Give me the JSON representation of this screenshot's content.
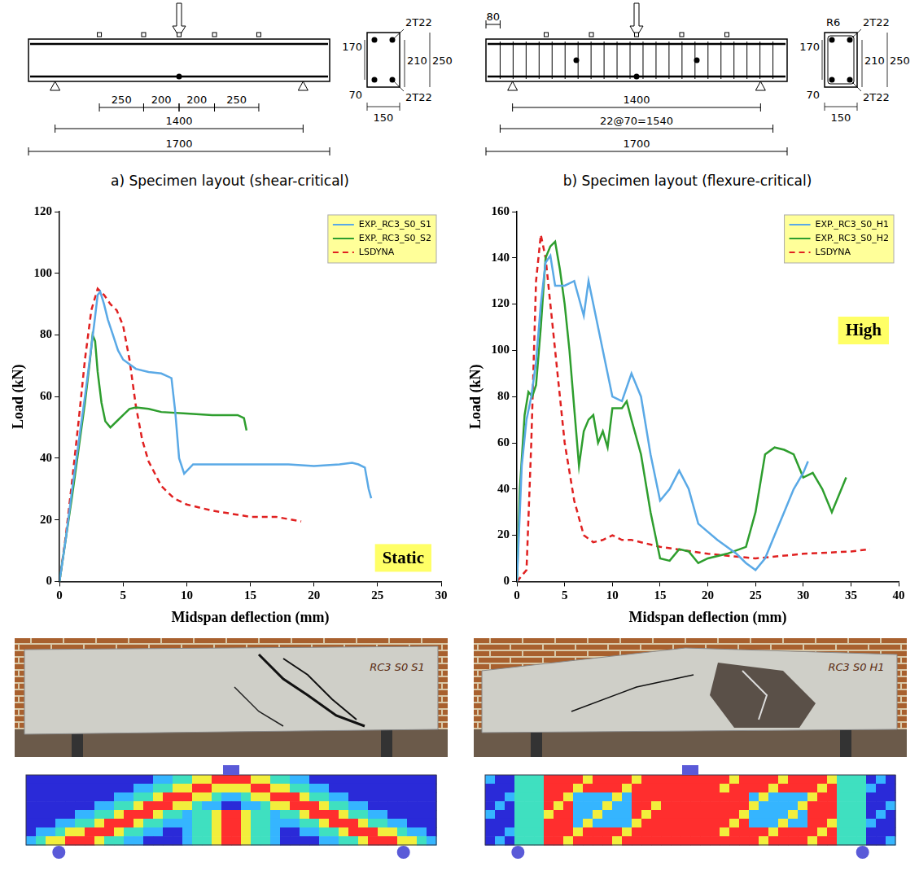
{
  "chart_data": [
    {
      "type": "line",
      "x_label": "Midspan deflection (mm)",
      "y_label": "Load (kN)",
      "annotations": [
        "Static"
      ],
      "legend": "upper right",
      "grid": false,
      "xlim": [
        0,
        30
      ],
      "xticks": [
        0,
        5,
        10,
        15,
        20,
        25,
        30
      ],
      "ylim": [
        0,
        120
      ],
      "yticks": [
        0,
        20,
        40,
        60,
        80,
        100,
        120
      ],
      "series": [
        {
          "name": "EXP._RC3_S0_S1",
          "color": "#5aa9e6",
          "line_style": "solid",
          "x": [
            0,
            0.5,
            1,
            1.5,
            2,
            2.5,
            2.8,
            3,
            3.2,
            3.5,
            3.8,
            4.2,
            4.6,
            5,
            6,
            7,
            8,
            8.8,
            9.1,
            9.4,
            9.8,
            10.5,
            12,
            15,
            18,
            20,
            22,
            23,
            23.5,
            24,
            24.3,
            24.5
          ],
          "values": [
            0,
            14,
            30,
            45,
            60,
            76,
            86,
            93,
            94,
            90,
            85,
            80,
            75,
            72,
            69,
            68,
            67.5,
            66,
            55,
            40,
            35,
            38,
            38,
            38,
            38,
            37.5,
            38,
            38.5,
            38,
            37,
            30,
            27
          ]
        },
        {
          "name": "EXP._RC3_S0_S2",
          "color": "#2e9e2e",
          "line_style": "solid",
          "x": [
            0,
            0.5,
            1,
            1.5,
            2,
            2.4,
            2.6,
            2.8,
            3,
            3.3,
            3.6,
            4,
            4.5,
            5,
            5.5,
            6,
            7,
            8,
            10,
            12,
            14,
            14.5,
            14.7
          ],
          "values": [
            0,
            14,
            28,
            43,
            58,
            72,
            80,
            78,
            68,
            58,
            52,
            50,
            52,
            54,
            56,
            56.5,
            56,
            55,
            54.5,
            54,
            54,
            53,
            49
          ]
        },
        {
          "name": "LSDYNA",
          "color": "#e02020",
          "line_style": "dashed",
          "x": [
            0,
            0.5,
            1,
            1.5,
            2,
            2.5,
            3,
            3.5,
            4,
            4.5,
            5,
            5.5,
            6,
            6.5,
            7,
            8,
            9,
            10,
            12,
            15,
            17,
            19
          ],
          "values": [
            0,
            15,
            33,
            52,
            72,
            88,
            95,
            93,
            90,
            88,
            83,
            72,
            57,
            46,
            39,
            31,
            27,
            25,
            23,
            21,
            21,
            19.5
          ]
        }
      ]
    },
    {
      "type": "line",
      "x_label": "Midspan deflection (mm)",
      "y_label": "Load (kN)",
      "annotations": [
        "High"
      ],
      "legend": "upper right",
      "grid": false,
      "xlim": [
        0,
        40
      ],
      "xticks": [
        0,
        5,
        10,
        15,
        20,
        25,
        30,
        35,
        40
      ],
      "ylim": [
        0,
        160
      ],
      "yticks": [
        0,
        20,
        40,
        60,
        80,
        100,
        120,
        140,
        160
      ],
      "series": [
        {
          "name": "EXP._RC3_S0_H1",
          "color": "#5aa9e6",
          "line_style": "solid",
          "x": [
            0,
            0.5,
            1,
            1.5,
            2,
            2.5,
            3,
            3.5,
            4,
            5,
            6,
            7,
            7.5,
            8,
            9,
            10,
            11,
            12,
            13,
            14,
            15,
            16,
            17,
            18,
            19,
            21,
            23,
            24,
            25,
            26,
            27,
            28,
            29,
            30,
            30.5
          ],
          "values": [
            0,
            50,
            70,
            80,
            95,
            120,
            138,
            141,
            128,
            128,
            130,
            115,
            130,
            120,
            100,
            80,
            78,
            90,
            80,
            55,
            35,
            40,
            48,
            40,
            25,
            18,
            12,
            8,
            5,
            10,
            20,
            30,
            40,
            47,
            52
          ]
        },
        {
          "name": "EXP._RC3_S0_H2",
          "color": "#2e9e2e",
          "line_style": "solid",
          "x": [
            0,
            0.3,
            0.8,
            1.2,
            1.6,
            2,
            2.5,
            3,
            3.5,
            4,
            4.5,
            5,
            5.5,
            6,
            6.5,
            7,
            7.5,
            8,
            8.5,
            9,
            9.5,
            10,
            11,
            11.5,
            12,
            13,
            14,
            15,
            16,
            17,
            18,
            19,
            20,
            22,
            24,
            25,
            26,
            27,
            28,
            29,
            30,
            31,
            32,
            33,
            34,
            34.5
          ],
          "values": [
            0,
            40,
            72,
            82,
            80,
            85,
            110,
            140,
            145,
            147,
            135,
            120,
            100,
            75,
            50,
            65,
            70,
            72,
            60,
            65,
            58,
            75,
            75,
            78,
            70,
            55,
            30,
            10,
            9,
            14,
            13,
            8,
            10,
            12,
            15,
            30,
            55,
            58,
            57,
            55,
            45,
            47,
            40,
            30,
            40,
            45
          ]
        },
        {
          "name": "LSDYNA",
          "color": "#e02020",
          "line_style": "dashed",
          "x": [
            0,
            1,
            1.5,
            2,
            2.5,
            3,
            3.5,
            4,
            5,
            6,
            7,
            8,
            9,
            10,
            11,
            12,
            15,
            20,
            25,
            30,
            35,
            37
          ],
          "values": [
            0,
            5,
            60,
            130,
            150,
            140,
            120,
            100,
            60,
            35,
            20,
            17,
            18,
            20,
            18,
            18,
            15,
            12,
            10,
            12,
            13,
            14
          ]
        }
      ]
    }
  ],
  "specimens": [
    {
      "caption": "a) Specimen layout (shear-critical)",
      "elevation": {
        "gauge_spacing": [
          250,
          200,
          200,
          250
        ],
        "span": 1400,
        "length": 1700
      },
      "section": {
        "top_bars": "2T22",
        "bottom_bars": "2T22",
        "inner": 170,
        "cover": 70,
        "effective": 210,
        "height": 250,
        "width": 150
      }
    },
    {
      "caption": "b) Specimen layout (flexure-critical)",
      "elevation": {
        "end_offset": 80,
        "span": 1400,
        "stirrups": "22@70=1540",
        "length": 1700
      },
      "section": {
        "stirrup": "R6",
        "top_bars": "2T22",
        "bottom_bars": "2T22",
        "inner": 170,
        "cover": 70,
        "effective": 210,
        "height": 250,
        "width": 150
      }
    }
  ],
  "photos": [
    {
      "label": "RC3 S0 S1"
    },
    {
      "label": "RC3 S0 H1"
    }
  ]
}
